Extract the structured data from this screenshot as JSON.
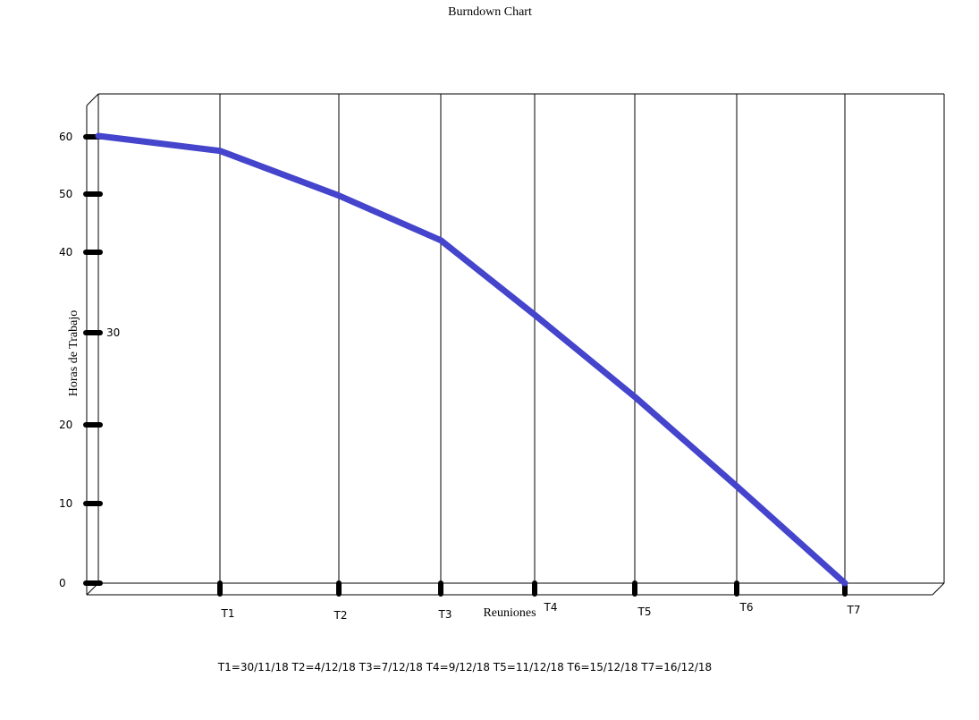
{
  "chart_data": {
    "type": "line",
    "title": "Burndown Chart",
    "xlabel": "Reuniones",
    "ylabel": "Horas de Trabajo",
    "categories": [
      "",
      "T1",
      "T2",
      "T3",
      "T4",
      "T5",
      "T6",
      "T7"
    ],
    "x_tick_labels": [
      "T1",
      "T2",
      "T3",
      "T4",
      "T5",
      "T6",
      "T7"
    ],
    "y_ticks": [
      0,
      10,
      20,
      30,
      40,
      50,
      60
    ],
    "ylim": [
      0,
      60
    ],
    "grid": "vertical",
    "series": [
      {
        "values": [
          60,
          58,
          52,
          46,
          36,
          25,
          13,
          0
        ],
        "color": "#4444cc"
      }
    ],
    "footnote": "T1=30/11/18  T2=4/12/18  T3=7/12/18  T4=9/12/18  T5=11/12/18  T6=15/12/18  T7=16/12/18"
  }
}
